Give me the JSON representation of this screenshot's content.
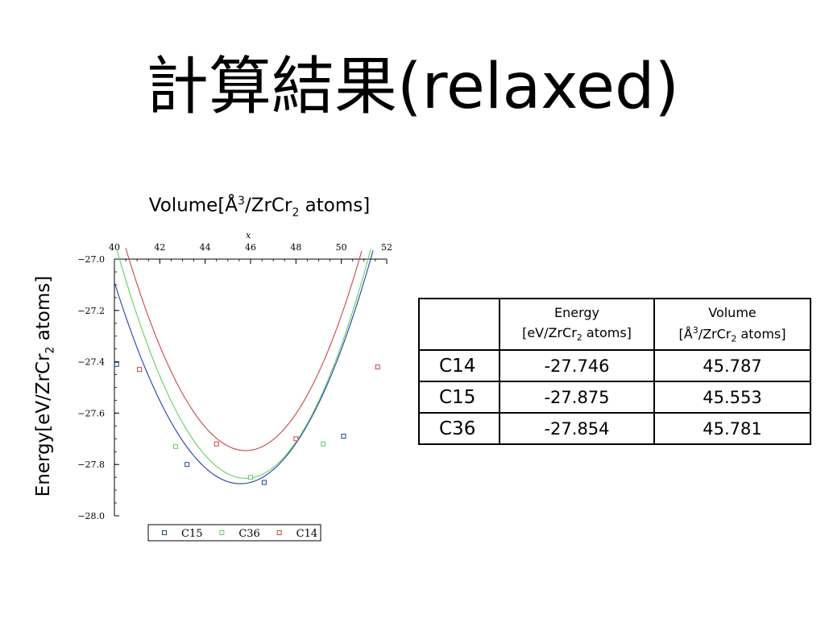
{
  "slide": {
    "title": "計算結果(relaxed)"
  },
  "chart_data": {
    "type": "scatter",
    "x_axis": {
      "title_prefix": "Volume[Å",
      "title_sup": "3",
      "title_mid": "/ZrCr",
      "title_sub": "2",
      "title_suffix": " atoms]",
      "variable_label": "x",
      "range": [
        40,
        52
      ],
      "ticks": [
        "40",
        "42",
        "44",
        "46",
        "48",
        "50",
        "52"
      ],
      "position": "top"
    },
    "y_axis": {
      "title_prefix": "Energy[eV/ZrCr",
      "title_sub": "2",
      "title_suffix": " atoms]",
      "range": [
        -28.0,
        -27.0
      ],
      "ticks": [
        "−27.0",
        "−27.2",
        "−27.4",
        "−27.6",
        "−27.8",
        "−28.0"
      ]
    },
    "grid": false,
    "legend_position": "bottom",
    "series": [
      {
        "name": "C15",
        "color": "#1f3fa8",
        "points": [
          [
            40.1,
            -27.41
          ],
          [
            43.2,
            -27.8
          ],
          [
            46.6,
            -27.87
          ],
          [
            50.1,
            -27.69
          ]
        ],
        "fit": {
          "e0": -27.875,
          "v0": 45.553,
          "k": 0.026,
          "c": 0.0001
        }
      },
      {
        "name": "C36",
        "color": "#5fd25f",
        "points": [
          [
            42.7,
            -27.73
          ],
          [
            46.0,
            -27.85
          ],
          [
            49.2,
            -27.72
          ]
        ],
        "fit": {
          "e0": -27.854,
          "v0": 45.781,
          "k": 0.0285,
          "c": 0.00015
        }
      },
      {
        "name": "C14",
        "color": "#c84848",
        "points": [
          [
            41.1,
            -27.43
          ],
          [
            44.5,
            -27.72
          ],
          [
            48.0,
            -27.7
          ],
          [
            51.6,
            -27.42
          ]
        ],
        "fit": {
          "e0": -27.746,
          "v0": 45.787,
          "k": 0.029,
          "c": 0.00015
        }
      }
    ]
  },
  "table": {
    "headers": [
      {
        "line1": "",
        "line2": ""
      },
      {
        "line1": "Energy",
        "line2_prefix": "[eV/ZrCr",
        "line2_sub": "2",
        "line2_suffix": " atoms]"
      },
      {
        "line1": "Volume",
        "line2_prefix": "[Å",
        "line2_sup": "3",
        "line2_mid": "/ZrCr",
        "line2_sub": "2",
        "line2_suffix": " atoms]"
      }
    ],
    "rows": [
      {
        "name": "C14",
        "energy": "-27.746",
        "volume": "45.787"
      },
      {
        "name": "C15",
        "energy": "-27.875",
        "volume": "45.553"
      },
      {
        "name": "C36",
        "energy": "-27.854",
        "volume": "45.781"
      }
    ]
  }
}
